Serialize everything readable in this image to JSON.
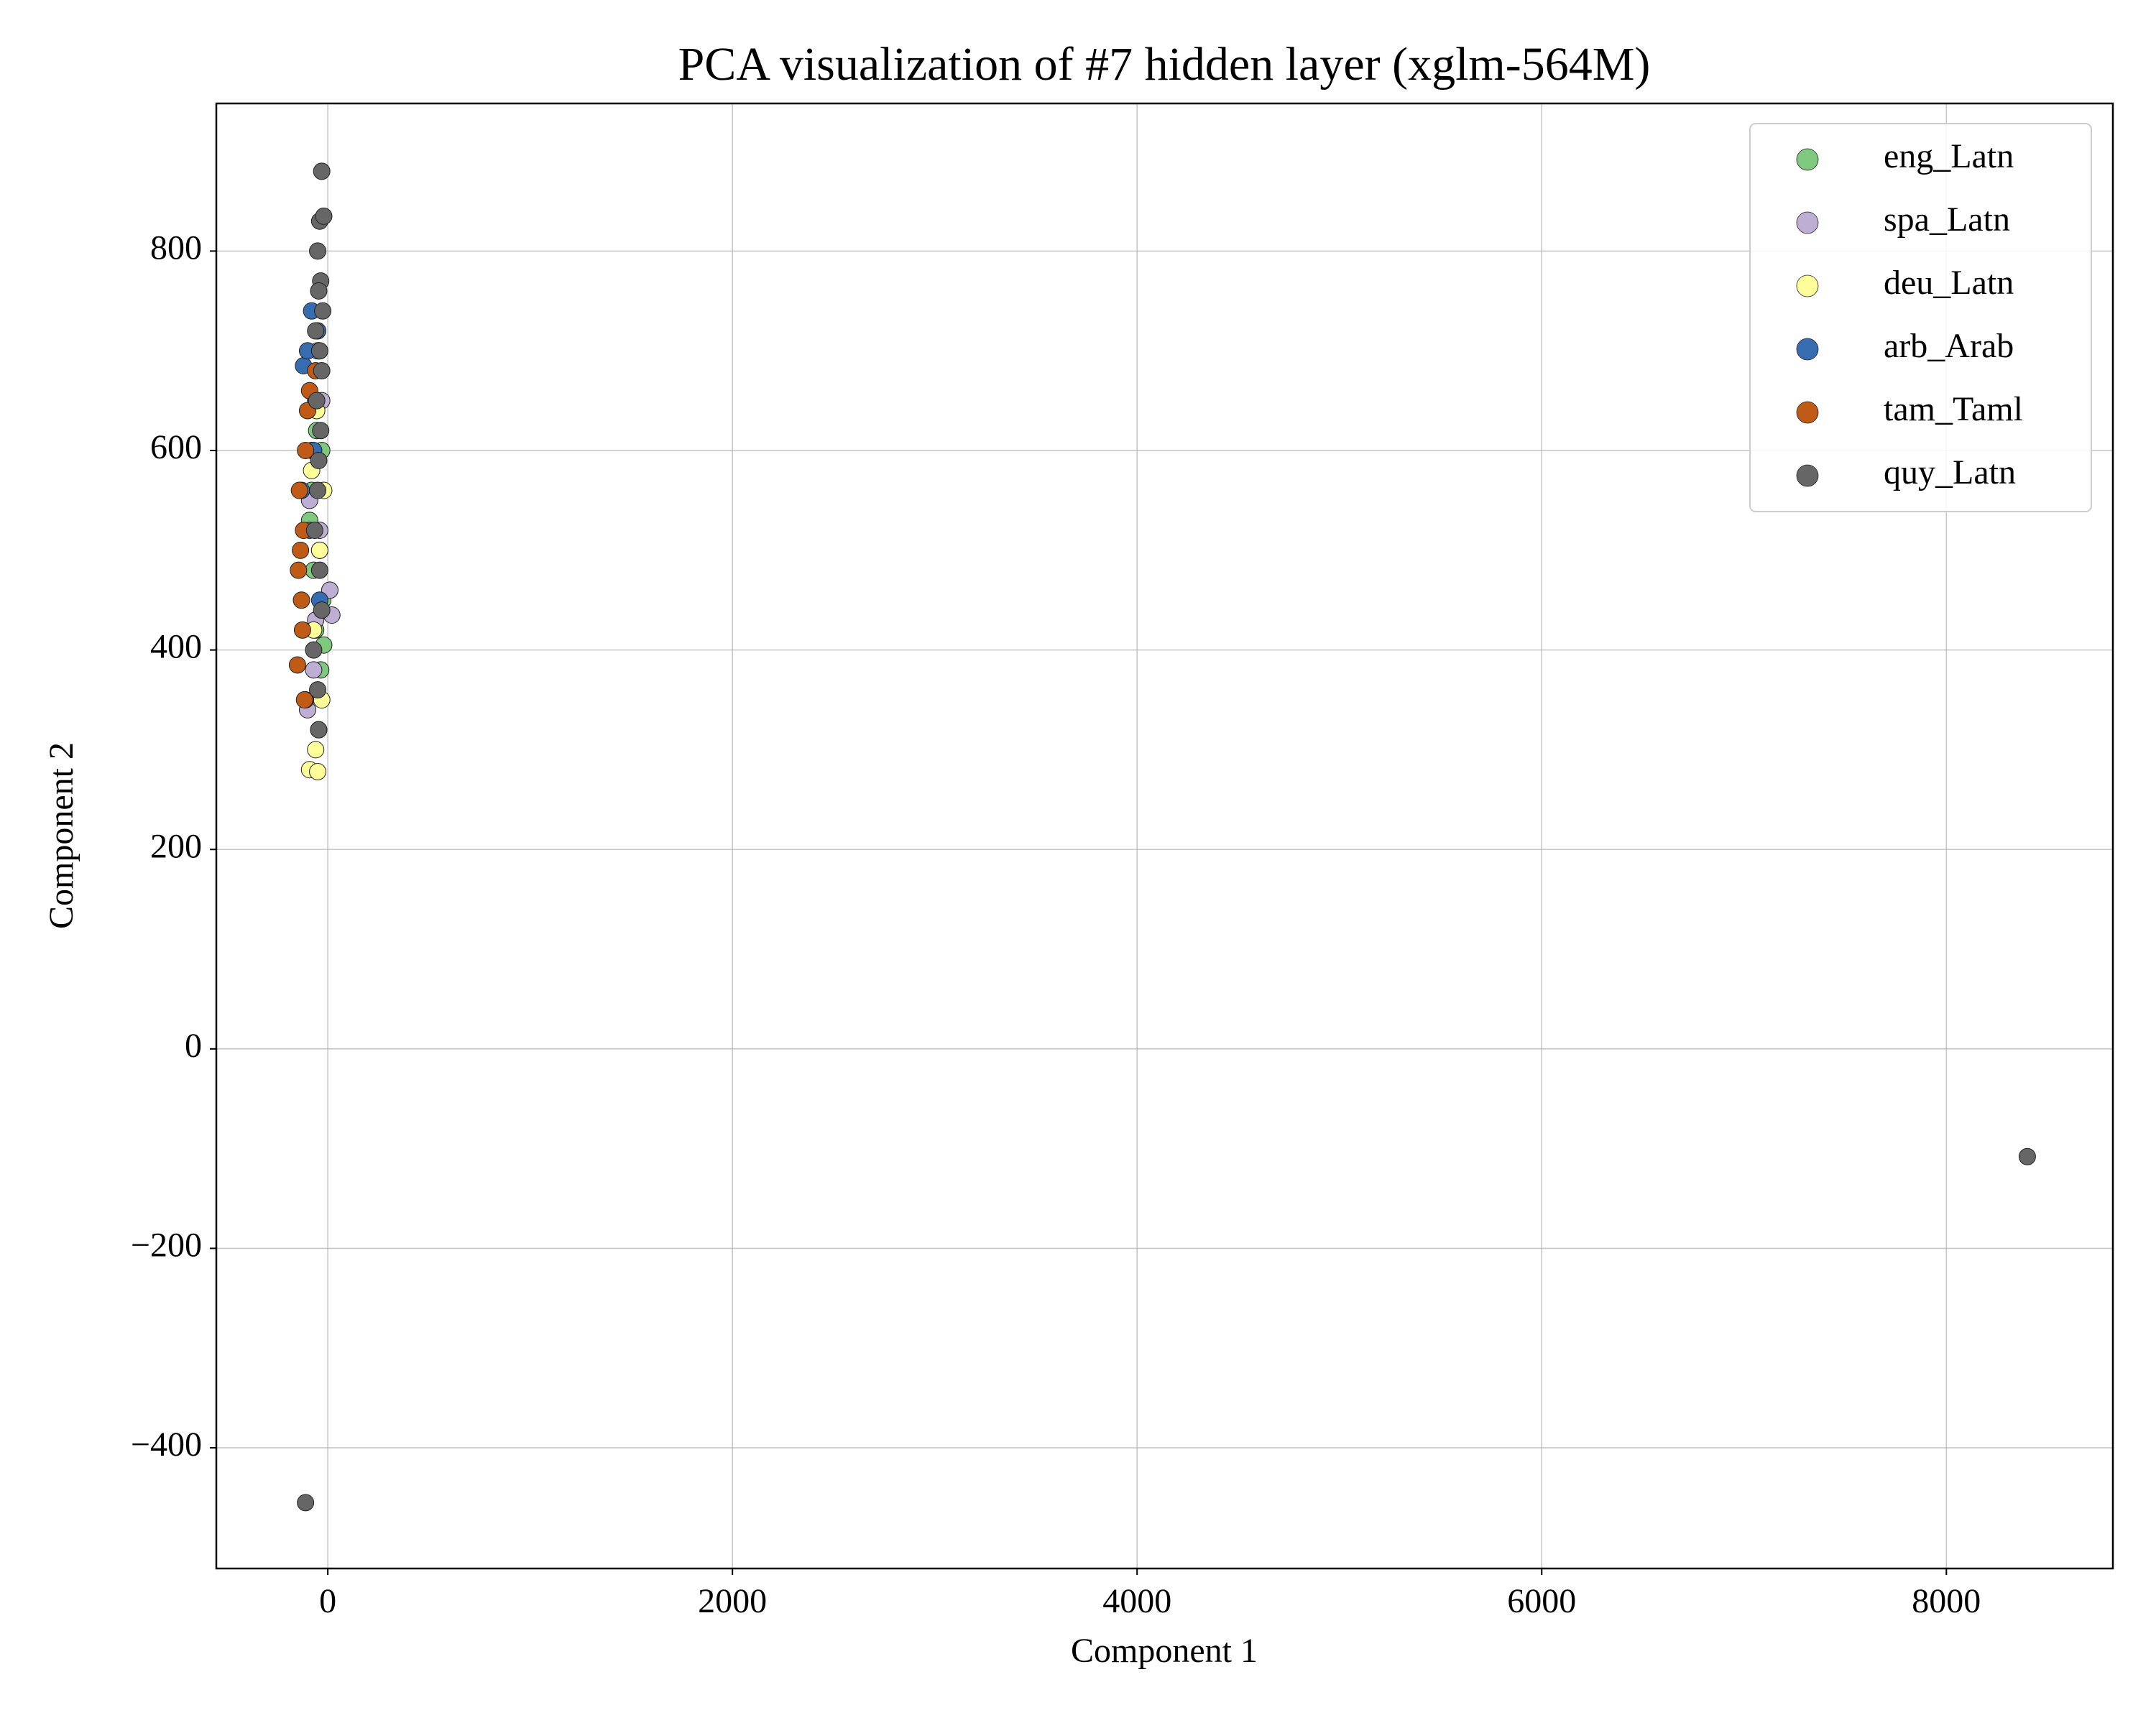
{
  "chart_data": {
    "type": "scatter",
    "title": "PCA visualization of #7 hidden layer (xglm-564M)",
    "x_label": "Component 1",
    "y_label": "Component 2",
    "xlim": [
      -551,
      8823
    ],
    "ylim": [
      -521,
      948
    ],
    "xticks": [
      0,
      2000,
      4000,
      6000,
      8000
    ],
    "yticks": [
      {
        "value": -400,
        "label": "−400"
      },
      {
        "value": -200,
        "label": "−200"
      },
      0,
      200,
      400,
      600,
      800
    ],
    "grid": true,
    "legend": "upper right",
    "series": [
      {
        "name": "eng_Latn",
        "color": "#7fc97f",
        "x": [
          -60,
          -40,
          -80,
          -30,
          -50,
          -70,
          -20,
          -45,
          -90,
          -35,
          -55,
          -25
        ],
        "values": [
          420,
          500,
          560,
          600,
          650,
          480,
          405,
          700,
          530,
          380,
          620,
          450
        ]
      },
      {
        "name": "spa_Latn",
        "color": "#beaed4",
        "x": [
          -100,
          -60,
          20,
          -40,
          -80,
          -50,
          10,
          -70,
          -30,
          -90
        ],
        "values": [
          340,
          430,
          435,
          520,
          600,
          700,
          460,
          380,
          650,
          550
        ]
      },
      {
        "name": "deu_Latn",
        "color": "#fdfd99",
        "x": [
          -90,
          -50,
          -60,
          -30,
          -70,
          -40,
          -80,
          -20,
          -55,
          -45
        ],
        "values": [
          280,
          278,
          300,
          350,
          420,
          500,
          580,
          560,
          640,
          320
        ]
      },
      {
        "name": "arb_Arab",
        "color": "#386cb0",
        "x": [
          -120,
          -100,
          -80,
          -60,
          -110,
          -90,
          -70,
          -50,
          -130,
          -40
        ],
        "values": [
          685,
          700,
          740,
          650,
          350,
          520,
          600,
          720,
          560,
          450
        ]
      },
      {
        "name": "tam_Taml",
        "color": "#bf5b17",
        "x": [
          -150,
          -130,
          -120,
          -140,
          -110,
          -100,
          -145,
          -125,
          -90,
          -135,
          -115,
          -60
        ],
        "values": [
          385,
          450,
          520,
          560,
          600,
          640,
          480,
          420,
          660,
          500,
          350,
          680
        ]
      },
      {
        "name": "quy_Latn",
        "color": "#666666",
        "x": [
          -30,
          -40,
          -20,
          -50,
          -35,
          -45,
          -25,
          -60,
          -40,
          -30,
          -55,
          -35,
          -45,
          -50,
          -65,
          -40,
          -30,
          -70,
          -50,
          -45,
          8400,
          -110
        ],
        "values": [
          880,
          830,
          835,
          800,
          770,
          760,
          740,
          720,
          700,
          680,
          650,
          620,
          590,
          560,
          520,
          480,
          440,
          400,
          360,
          320,
          -108,
          -455
        ]
      }
    ]
  }
}
